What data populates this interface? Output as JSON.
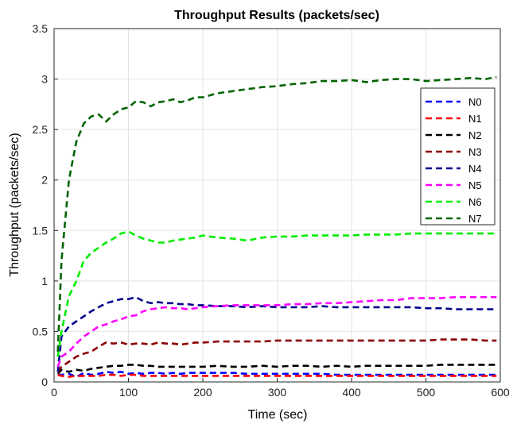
{
  "chart_data": {
    "type": "line",
    "title": "Throughput Results (packets/sec)",
    "xlabel": "Time (sec)",
    "ylabel": "Throughput (packets/sec)",
    "xlim": [
      0,
      600
    ],
    "ylim": [
      0,
      3.5
    ],
    "xticks": [
      0,
      100,
      200,
      300,
      400,
      500,
      600
    ],
    "yticks": [
      0,
      0.5,
      1,
      1.5,
      2,
      2.5,
      3,
      3.5
    ],
    "xtick_labels": [
      "0",
      "100",
      "200",
      "300",
      "400",
      "500",
      "600"
    ],
    "ytick_labels": [
      "0",
      "0.5",
      "1",
      "1.5",
      "2",
      "2.5",
      "3",
      "3.5"
    ],
    "grid": true,
    "legend_position": "top-right",
    "line_style": "dashed",
    "x": [
      5,
      10,
      20,
      30,
      40,
      50,
      60,
      70,
      80,
      90,
      100,
      110,
      120,
      130,
      140,
      150,
      160,
      170,
      180,
      190,
      200,
      220,
      240,
      260,
      280,
      300,
      320,
      340,
      360,
      380,
      400,
      420,
      440,
      460,
      480,
      500,
      520,
      540,
      560,
      580,
      595
    ],
    "series": [
      {
        "name": "N0",
        "color": "#0000ff",
        "values": [
          0.07,
          0.07,
          0.08,
          0.05,
          0.09,
          0.07,
          0.08,
          0.1,
          0.09,
          0.1,
          0.08,
          0.09,
          0.08,
          0.09,
          0.09,
          0.08,
          0.09,
          0.08,
          0.09,
          0.09,
          0.09,
          0.09,
          0.09,
          0.08,
          0.08,
          0.08,
          0.08,
          0.08,
          0.08,
          0.07,
          0.07,
          0.07,
          0.07,
          0.07,
          0.07,
          0.07,
          0.07,
          0.07,
          0.07,
          0.07,
          0.07
        ]
      },
      {
        "name": "N1",
        "color": "#ff0000",
        "values": [
          0.07,
          0.06,
          0.05,
          0.06,
          0.06,
          0.06,
          0.06,
          0.07,
          0.07,
          0.06,
          0.07,
          0.07,
          0.06,
          0.06,
          0.06,
          0.06,
          0.06,
          0.06,
          0.06,
          0.06,
          0.06,
          0.06,
          0.06,
          0.06,
          0.06,
          0.06,
          0.06,
          0.06,
          0.06,
          0.06,
          0.06,
          0.06,
          0.06,
          0.06,
          0.06,
          0.06,
          0.06,
          0.06,
          0.06,
          0.06,
          0.06
        ]
      },
      {
        "name": "N2",
        "color": "#000000",
        "values": [
          0.08,
          0.12,
          0.1,
          0.12,
          0.11,
          0.13,
          0.14,
          0.15,
          0.16,
          0.16,
          0.17,
          0.17,
          0.16,
          0.16,
          0.15,
          0.15,
          0.15,
          0.15,
          0.15,
          0.15,
          0.15,
          0.16,
          0.15,
          0.15,
          0.16,
          0.15,
          0.16,
          0.16,
          0.15,
          0.16,
          0.15,
          0.16,
          0.16,
          0.16,
          0.16,
          0.16,
          0.17,
          0.17,
          0.17,
          0.17,
          0.17
        ]
      },
      {
        "name": "N3",
        "color": "#8b0000",
        "values": [
          0.1,
          0.15,
          0.2,
          0.25,
          0.28,
          0.3,
          0.35,
          0.39,
          0.38,
          0.39,
          0.37,
          0.38,
          0.38,
          0.37,
          0.39,
          0.38,
          0.38,
          0.37,
          0.38,
          0.39,
          0.39,
          0.4,
          0.4,
          0.4,
          0.4,
          0.41,
          0.41,
          0.41,
          0.41,
          0.41,
          0.41,
          0.41,
          0.41,
          0.41,
          0.41,
          0.41,
          0.42,
          0.42,
          0.42,
          0.41,
          0.41
        ]
      },
      {
        "name": "N4",
        "color": "#00008b",
        "values": [
          0.1,
          0.45,
          0.55,
          0.6,
          0.65,
          0.7,
          0.74,
          0.78,
          0.8,
          0.82,
          0.82,
          0.84,
          0.8,
          0.78,
          0.79,
          0.78,
          0.78,
          0.77,
          0.77,
          0.76,
          0.76,
          0.75,
          0.75,
          0.74,
          0.75,
          0.74,
          0.74,
          0.74,
          0.75,
          0.74,
          0.74,
          0.74,
          0.74,
          0.74,
          0.74,
          0.73,
          0.73,
          0.72,
          0.72,
          0.72,
          0.72
        ]
      },
      {
        "name": "N5",
        "color": "#ff00ff",
        "values": [
          0.15,
          0.25,
          0.3,
          0.38,
          0.45,
          0.5,
          0.55,
          0.57,
          0.6,
          0.62,
          0.65,
          0.66,
          0.7,
          0.72,
          0.73,
          0.74,
          0.73,
          0.73,
          0.72,
          0.73,
          0.74,
          0.75,
          0.76,
          0.76,
          0.76,
          0.76,
          0.77,
          0.77,
          0.78,
          0.78,
          0.79,
          0.8,
          0.81,
          0.81,
          0.83,
          0.83,
          0.83,
          0.84,
          0.84,
          0.84,
          0.84
        ]
      },
      {
        "name": "N6",
        "color": "#00ee00",
        "values": [
          0.25,
          0.5,
          0.85,
          1.0,
          1.2,
          1.28,
          1.33,
          1.38,
          1.42,
          1.47,
          1.49,
          1.45,
          1.42,
          1.4,
          1.38,
          1.38,
          1.4,
          1.41,
          1.42,
          1.43,
          1.45,
          1.43,
          1.42,
          1.4,
          1.43,
          1.44,
          1.44,
          1.45,
          1.45,
          1.45,
          1.45,
          1.46,
          1.46,
          1.46,
          1.47,
          1.47,
          1.47,
          1.47,
          1.47,
          1.47,
          1.47
        ]
      },
      {
        "name": "N7",
        "color": "#006400",
        "values": [
          0.3,
          1.2,
          2.0,
          2.38,
          2.56,
          2.63,
          2.65,
          2.58,
          2.65,
          2.7,
          2.72,
          2.78,
          2.77,
          2.73,
          2.77,
          2.78,
          2.8,
          2.77,
          2.79,
          2.82,
          2.82,
          2.86,
          2.88,
          2.9,
          2.92,
          2.93,
          2.95,
          2.96,
          2.98,
          2.98,
          2.99,
          2.97,
          2.99,
          3.0,
          3.0,
          2.98,
          2.99,
          3.0,
          3.01,
          3.0,
          3.02
        ]
      }
    ]
  }
}
